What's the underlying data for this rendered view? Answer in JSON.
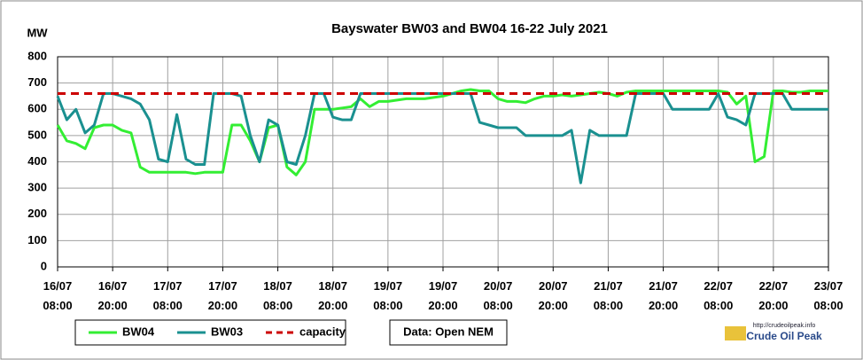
{
  "chart_data": {
    "type": "line",
    "title": "Bayswater BW03 and BW04  16-22 July 2021",
    "y_label": "MW",
    "source_note": "Data: Open NEM",
    "logo_url": "http://crudeoilpeak.info",
    "logo_name": "Crude Oil Peak",
    "categories": [
      "16/07\n08:00",
      null,
      null,
      null,
      null,
      null,
      "16/07\n20:00",
      null,
      null,
      null,
      null,
      null,
      "17/07\n08:00",
      null,
      null,
      null,
      null,
      null,
      "17/07\n20:00",
      null,
      null,
      null,
      null,
      null,
      "18/07\n08:00",
      null,
      null,
      null,
      null,
      null,
      "18/07\n20:00",
      null,
      null,
      null,
      null,
      null,
      "19/07\n08:00",
      null,
      null,
      null,
      null,
      null,
      "19/07\n20:00",
      null,
      null,
      null,
      null,
      null,
      "20/07\n08:00",
      null,
      null,
      null,
      null,
      null,
      "20/07\n20:00",
      null,
      null,
      null,
      null,
      null,
      "21/07\n08:00",
      null,
      null,
      null,
      null,
      null,
      "21/07\n20:00",
      null,
      null,
      null,
      null,
      null,
      "22/07\n08:00",
      null,
      null,
      null,
      null,
      null,
      "22/07\n20:00",
      null,
      null,
      null,
      null,
      null,
      "23/07\n08:00"
    ],
    "series": [
      {
        "name": "BW04",
        "color": "#33ee33",
        "values": [
          540,
          480,
          470,
          450,
          530,
          540,
          540,
          520,
          510,
          380,
          360,
          360,
          360,
          360,
          360,
          355,
          360,
          360,
          360,
          540,
          540,
          480,
          400,
          530,
          540,
          380,
          350,
          400,
          600,
          600,
          600,
          605,
          610,
          640,
          610,
          630,
          630,
          635,
          640,
          640,
          640,
          645,
          650,
          660,
          670,
          675,
          670,
          670,
          640,
          630,
          630,
          625,
          640,
          650,
          650,
          655,
          650,
          655,
          660,
          665,
          660,
          650,
          665,
          670,
          670,
          670,
          670,
          670,
          670,
          670,
          670,
          670,
          670,
          665,
          620,
          650,
          400,
          420,
          670,
          670,
          665,
          665,
          670,
          670,
          670
        ]
      },
      {
        "name": "BW03",
        "color": "#1a9090",
        "values": [
          650,
          560,
          600,
          510,
          540,
          660,
          660,
          650,
          640,
          620,
          560,
          410,
          400,
          580,
          410,
          390,
          390,
          660,
          660,
          660,
          650,
          500,
          400,
          560,
          540,
          400,
          390,
          500,
          660,
          660,
          570,
          560,
          560,
          660,
          660,
          660,
          660,
          660,
          660,
          660,
          660,
          660,
          660,
          660,
          660,
          660,
          550,
          540,
          530,
          530,
          530,
          500,
          500,
          500,
          500,
          500,
          520,
          320,
          520,
          500,
          500,
          500,
          500,
          660,
          660,
          660,
          660,
          600,
          600,
          600,
          600,
          600,
          660,
          570,
          560,
          540,
          660,
          660,
          660,
          660,
          600,
          600,
          600,
          600,
          600
        ]
      }
    ],
    "reference_lines": [
      {
        "name": "capacity",
        "value": 660,
        "color": "#cc0000"
      }
    ],
    "ylim": [
      0,
      800
    ],
    "yticks": [
      0,
      100,
      200,
      300,
      400,
      500,
      600,
      700,
      800
    ],
    "grid": true
  }
}
